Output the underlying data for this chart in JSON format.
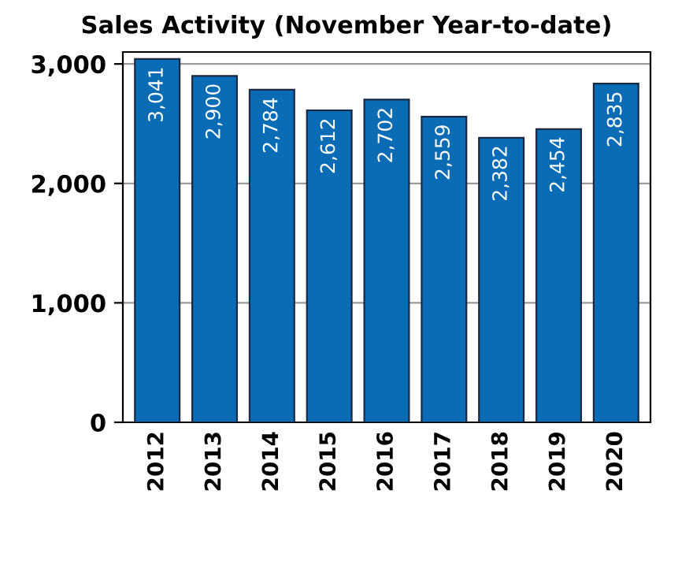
{
  "chart_data": {
    "type": "bar",
    "title": "Sales Activity (November Year-to-date)",
    "categories": [
      "2012",
      "2013",
      "2014",
      "2015",
      "2016",
      "2017",
      "2018",
      "2019",
      "2020"
    ],
    "values": [
      3041,
      2900,
      2784,
      2612,
      2702,
      2559,
      2382,
      2454,
      2835
    ],
    "value_labels": [
      "3,041",
      "2,900",
      "2,784",
      "2,612",
      "2,702",
      "2,559",
      "2,382",
      "2,454",
      "2,835"
    ],
    "color": "#0a6cb5",
    "ylim": [
      0,
      3100
    ],
    "yticks": [
      {
        "value": 0,
        "label": "0"
      },
      {
        "value": 1000,
        "label": "1,000"
      },
      {
        "value": 2000,
        "label": "2,000"
      },
      {
        "value": 3000,
        "label": "3,000"
      }
    ],
    "grid": "y"
  }
}
